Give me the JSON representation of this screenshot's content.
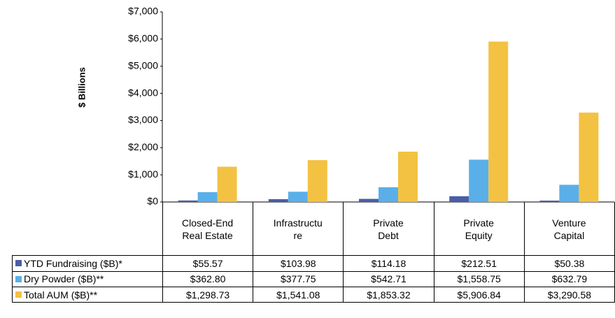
{
  "chart_data": {
    "type": "bar",
    "ylabel": "$ Billions",
    "categories": [
      "Closed-End Real Estate",
      "Infrastructure",
      "Private Debt",
      "Private Equity",
      "Venture Capital"
    ],
    "series": [
      {
        "name": "YTD Fundraising ($B)*",
        "color": "#4a5ea6",
        "values": [
          55.57,
          103.98,
          114.18,
          212.51,
          50.38
        ],
        "value_labels": [
          "$55.57",
          "$103.98",
          "$114.18",
          "$212.51",
          "$50.38"
        ]
      },
      {
        "name": "Dry Powder ($B)**",
        "color": "#5aafe9",
        "values": [
          362.8,
          377.75,
          542.71,
          1558.75,
          632.79
        ],
        "value_labels": [
          "$362.80",
          "$377.75",
          "$542.71",
          "$1,558.75",
          "$632.79"
        ]
      },
      {
        "name": "Total AUM ($B)**",
        "color": "#f3c242",
        "values": [
          1298.73,
          1541.08,
          1853.32,
          5906.84,
          3290.58
        ],
        "value_labels": [
          "$1,298.73",
          "$1,541.08",
          "$1,853.32",
          "$5,906.84",
          "$3,290.58"
        ]
      }
    ],
    "ylim": [
      0,
      7000
    ],
    "yticks": [
      {
        "value": 0,
        "label": "$0"
      },
      {
        "value": 1000,
        "label": "$1,000"
      },
      {
        "value": 2000,
        "label": "$2,000"
      },
      {
        "value": 3000,
        "label": "$3,000"
      },
      {
        "value": 4000,
        "label": "$4,000"
      },
      {
        "value": 5000,
        "label": "$5,000"
      },
      {
        "value": 6000,
        "label": "$6,000"
      },
      {
        "value": 7000,
        "label": "$7,000"
      }
    ],
    "grid": false
  }
}
